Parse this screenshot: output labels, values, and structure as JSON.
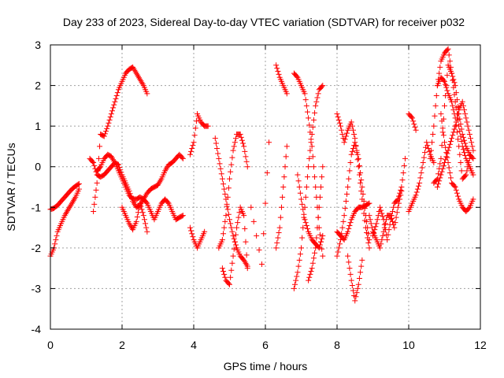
{
  "chart_data": {
    "type": "scatter",
    "title": "Day 233 of 2023, Sidereal Day-to-day VTEC variation (SDTVAR) for receiver p032",
    "xlabel": "GPS time / hours",
    "ylabel": "SDTVAR / TECUs",
    "xlim": [
      0,
      12
    ],
    "ylim": [
      -4,
      3
    ],
    "xticks": [
      "0",
      "2",
      "4",
      "6",
      "8",
      "10",
      "12"
    ],
    "yticks": [
      "-4",
      "-3",
      "-2",
      "-1",
      "0",
      "1",
      "2",
      "3"
    ],
    "grid": true,
    "marker": "+",
    "color": "#ff0000",
    "series": [
      {
        "x": [
          0.0,
          0.1,
          0.2,
          0.3,
          0.4,
          0.5,
          0.6,
          0.7,
          0.8
        ],
        "y": [
          -1.05,
          -1.02,
          -0.95,
          -0.85,
          -0.75,
          -0.65,
          -0.55,
          -0.48,
          -0.42
        ]
      },
      {
        "x": [
          0.0,
          0.1,
          0.2,
          0.3,
          0.4,
          0.5,
          0.6,
          0.7,
          0.8
        ],
        "y": [
          -2.2,
          -2.0,
          -1.6,
          -1.4,
          -1.2,
          -1.05,
          -0.9,
          -0.75,
          -0.55
        ]
      },
      {
        "x": [
          1.2,
          1.3,
          1.4,
          1.5,
          1.6,
          1.7,
          1.8,
          1.9,
          2.0,
          2.1,
          2.2,
          2.3,
          2.4,
          2.5,
          2.6,
          2.7
        ],
        "y": [
          -1.1,
          -0.4,
          0.8,
          0.75,
          1.0,
          1.3,
          1.6,
          1.9,
          2.1,
          2.3,
          2.4,
          2.45,
          2.3,
          2.15,
          2.0,
          1.8
        ]
      },
      {
        "x": [
          1.1,
          1.2,
          1.3,
          1.4,
          1.5,
          1.6,
          1.7,
          1.8,
          1.9,
          2.0,
          2.1,
          2.2,
          2.3,
          2.4,
          2.5,
          2.6,
          2.7,
          2.8,
          2.9,
          3.0,
          3.1,
          3.2,
          3.3,
          3.4,
          3.5,
          3.6,
          3.7
        ],
        "y": [
          0.2,
          0.1,
          -0.2,
          -0.25,
          -0.2,
          -0.1,
          0.0,
          0.1,
          0.05,
          -0.2,
          -0.4,
          -0.6,
          -0.85,
          -1.0,
          -0.95,
          -0.8,
          -0.65,
          -0.55,
          -0.5,
          -0.45,
          -0.3,
          -0.1,
          0.05,
          0.1,
          0.2,
          0.3,
          0.2
        ]
      },
      {
        "x": [
          1.3,
          1.4,
          1.5,
          1.6,
          1.7,
          1.8,
          1.9,
          2.0,
          2.1,
          2.2,
          2.3,
          2.4,
          2.5,
          2.6,
          2.7,
          2.8,
          2.9,
          3.0,
          3.1,
          3.2,
          3.3,
          3.4,
          3.5,
          3.6,
          3.7
        ],
        "y": [
          -0.1,
          0.0,
          0.2,
          0.3,
          0.25,
          0.1,
          -0.1,
          -0.3,
          -0.5,
          -0.7,
          -0.8,
          -0.8,
          -0.75,
          -0.8,
          -0.9,
          -1.1,
          -1.3,
          -1.1,
          -0.9,
          -0.8,
          -0.9,
          -1.1,
          -1.3,
          -1.25,
          -1.2
        ]
      },
      {
        "x": [
          2.0,
          2.1,
          2.2,
          2.3,
          2.4,
          2.5,
          2.6,
          2.7
        ],
        "y": [
          -1.0,
          -1.2,
          -1.4,
          -1.55,
          -1.35,
          -0.9,
          -1.2,
          -1.6
        ]
      },
      {
        "x": [
          3.9,
          4.0,
          4.1,
          4.2,
          4.3,
          4.4
        ],
        "y": [
          0.3,
          0.6,
          1.3,
          1.1,
          1.0,
          1.0
        ]
      },
      {
        "x": [
          3.9,
          4.0,
          4.1,
          4.2,
          4.3
        ],
        "y": [
          -1.5,
          -1.8,
          -2.0,
          -1.8,
          -1.6
        ]
      },
      {
        "x": [
          4.6,
          4.7,
          4.8,
          4.9,
          5.0,
          5.1,
          5.2,
          5.3,
          5.4,
          5.5
        ],
        "y": [
          0.7,
          0.2,
          -0.3,
          -0.8,
          -1.3,
          -1.7,
          -2.0,
          -2.2,
          -2.3,
          -2.45
        ]
      },
      {
        "x": [
          4.7,
          4.8,
          4.9,
          5.0,
          5.1,
          5.2,
          5.3,
          5.4,
          5.5
        ],
        "y": [
          -2.0,
          -1.8,
          -1.2,
          -0.3,
          0.4,
          0.8,
          0.8,
          0.5,
          0.0
        ]
      },
      {
        "x": [
          4.8,
          4.9,
          5.0,
          5.1,
          5.2,
          5.3,
          5.4,
          5.5
        ],
        "y": [
          -2.5,
          -2.8,
          -2.9,
          -2.2,
          -1.5,
          -1.0,
          -1.2,
          -2.5
        ]
      },
      {
        "x": [
          5.6,
          5.9,
          6.1
        ],
        "y": [
          -1.0,
          -2.4,
          0.6
        ]
      },
      {
        "x": [
          6.3,
          6.4,
          6.5,
          6.6
        ],
        "y": [
          -2.0,
          -1.5,
          -0.5,
          0.5
        ]
      },
      {
        "x": [
          6.3,
          6.4,
          6.5,
          6.6
        ],
        "y": [
          2.5,
          2.2,
          2.0,
          1.8
        ]
      },
      {
        "x": [
          6.8,
          6.9,
          7.0,
          7.1,
          7.2,
          7.3,
          7.4,
          7.5,
          7.6
        ],
        "y": [
          2.3,
          2.2,
          2.0,
          1.8,
          1.2,
          0.5,
          -0.5,
          -1.5,
          -2.2
        ]
      },
      {
        "x": [
          6.8,
          6.9,
          7.0,
          7.1,
          7.2,
          7.3,
          7.4,
          7.5,
          7.6
        ],
        "y": [
          -3.0,
          -2.6,
          -2.0,
          -1.0,
          0.0,
          0.8,
          1.5,
          1.9,
          2.0
        ]
      },
      {
        "x": [
          6.9,
          7.0,
          7.1,
          7.2,
          7.3,
          7.4,
          7.5,
          7.6
        ],
        "y": [
          -0.2,
          -0.8,
          -1.3,
          -1.6,
          -1.8,
          -1.9,
          -2.0,
          -1.7
        ]
      },
      {
        "x": [
          7.2,
          7.3,
          7.4,
          7.5,
          7.6
        ],
        "y": [
          -2.8,
          -2.5,
          -2.0,
          -1.0,
          0.0
        ]
      },
      {
        "x": [
          8.0,
          8.1,
          8.2,
          8.3,
          8.4,
          8.5,
          8.6,
          8.7,
          8.8,
          8.9
        ],
        "y": [
          1.3,
          1.0,
          0.6,
          0.9,
          1.1,
          0.7,
          0.0,
          -0.8,
          -1.5,
          -2.0
        ]
      },
      {
        "x": [
          8.0,
          8.1,
          8.2,
          8.3,
          8.4,
          8.5,
          8.6,
          8.7,
          8.8,
          8.9
        ],
        "y": [
          -2.2,
          -1.8,
          -1.2,
          -0.5,
          0.3,
          0.6,
          0.2,
          -0.5,
          -1.2,
          -1.8
        ]
      },
      {
        "x": [
          8.0,
          8.1,
          8.2,
          8.3,
          8.4,
          8.5,
          8.6,
          8.7,
          8.8,
          8.9
        ],
        "y": [
          -1.6,
          -1.7,
          -1.8,
          -1.6,
          -1.3,
          -1.1,
          -1.0,
          -1.0,
          -0.95,
          -0.9
        ]
      },
      {
        "x": [
          8.3,
          8.4,
          8.5,
          8.6,
          8.7
        ],
        "y": [
          -2.2,
          -2.8,
          -3.3,
          -2.9,
          -2.3
        ]
      },
      {
        "x": [
          8.9,
          9.0,
          9.1,
          9.2,
          9.3,
          9.4,
          9.5,
          9.6,
          9.7,
          9.8
        ],
        "y": [
          -1.2,
          -1.6,
          -1.8,
          -2.0,
          -1.6,
          -1.2,
          -1.2,
          -1.5,
          -1.0,
          -0.6
        ]
      },
      {
        "x": [
          9.0,
          9.1,
          9.2,
          9.3,
          9.4,
          9.5,
          9.6,
          9.7,
          9.8,
          9.9
        ],
        "y": [
          -1.7,
          -1.4,
          -1.0,
          -1.3,
          -1.8,
          -1.3,
          -0.9,
          -0.8,
          -0.5,
          0.2
        ]
      },
      {
        "x": [
          10.0,
          10.1,
          10.2,
          10.3,
          10.4,
          10.5,
          10.6,
          10.7
        ],
        "y": [
          -1.1,
          -0.9,
          -0.7,
          -0.4,
          0.1,
          0.6,
          0.3,
          0.1
        ]
      },
      {
        "x": [
          10.0,
          10.1,
          10.2
        ],
        "y": [
          1.3,
          1.2,
          0.9
        ]
      },
      {
        "x": [
          10.7,
          10.8,
          10.9,
          11.0,
          11.1,
          11.2,
          11.3,
          11.4,
          11.5,
          11.6,
          11.7,
          11.8
        ],
        "y": [
          -0.4,
          -0.3,
          0.2,
          1.5,
          2.5,
          2.3,
          2.0,
          1.3,
          0.8,
          0.5,
          0.3,
          0.2
        ]
      },
      {
        "x": [
          10.6,
          10.7,
          10.8,
          10.9,
          11.0,
          11.1,
          11.2,
          11.3,
          11.4,
          11.5,
          11.6,
          11.7,
          11.8
        ],
        "y": [
          0.2,
          1.0,
          2.0,
          2.6,
          2.8,
          2.9,
          2.3,
          1.6,
          1.0,
          0.5,
          0.2,
          0.0,
          -0.2
        ]
      },
      {
        "x": [
          10.8,
          10.9,
          11.0,
          11.1,
          11.2,
          11.3,
          11.4,
          11.5,
          11.6,
          11.7,
          11.8
        ],
        "y": [
          -0.5,
          -0.2,
          0.1,
          0.4,
          0.7,
          1.0,
          1.4,
          1.6,
          1.2,
          0.8,
          0.4
        ]
      },
      {
        "x": [
          10.9,
          11.0,
          11.1,
          11.2,
          11.3,
          11.4,
          11.5,
          11.6,
          11.7,
          11.8
        ],
        "y": [
          1.3,
          0.6,
          0.1,
          -0.4,
          -0.5,
          -0.8,
          -1.0,
          -1.1,
          -1.0,
          -0.8
        ]
      },
      {
        "x": [
          10.8,
          10.9,
          11.0,
          11.1,
          11.2,
          11.3,
          11.4,
          11.5,
          11.6,
          11.7
        ],
        "y": [
          2.0,
          2.2,
          2.1,
          1.8,
          1.6,
          1.2,
          0.5,
          -0.3,
          -0.2,
          0.2
        ]
      }
    ]
  }
}
